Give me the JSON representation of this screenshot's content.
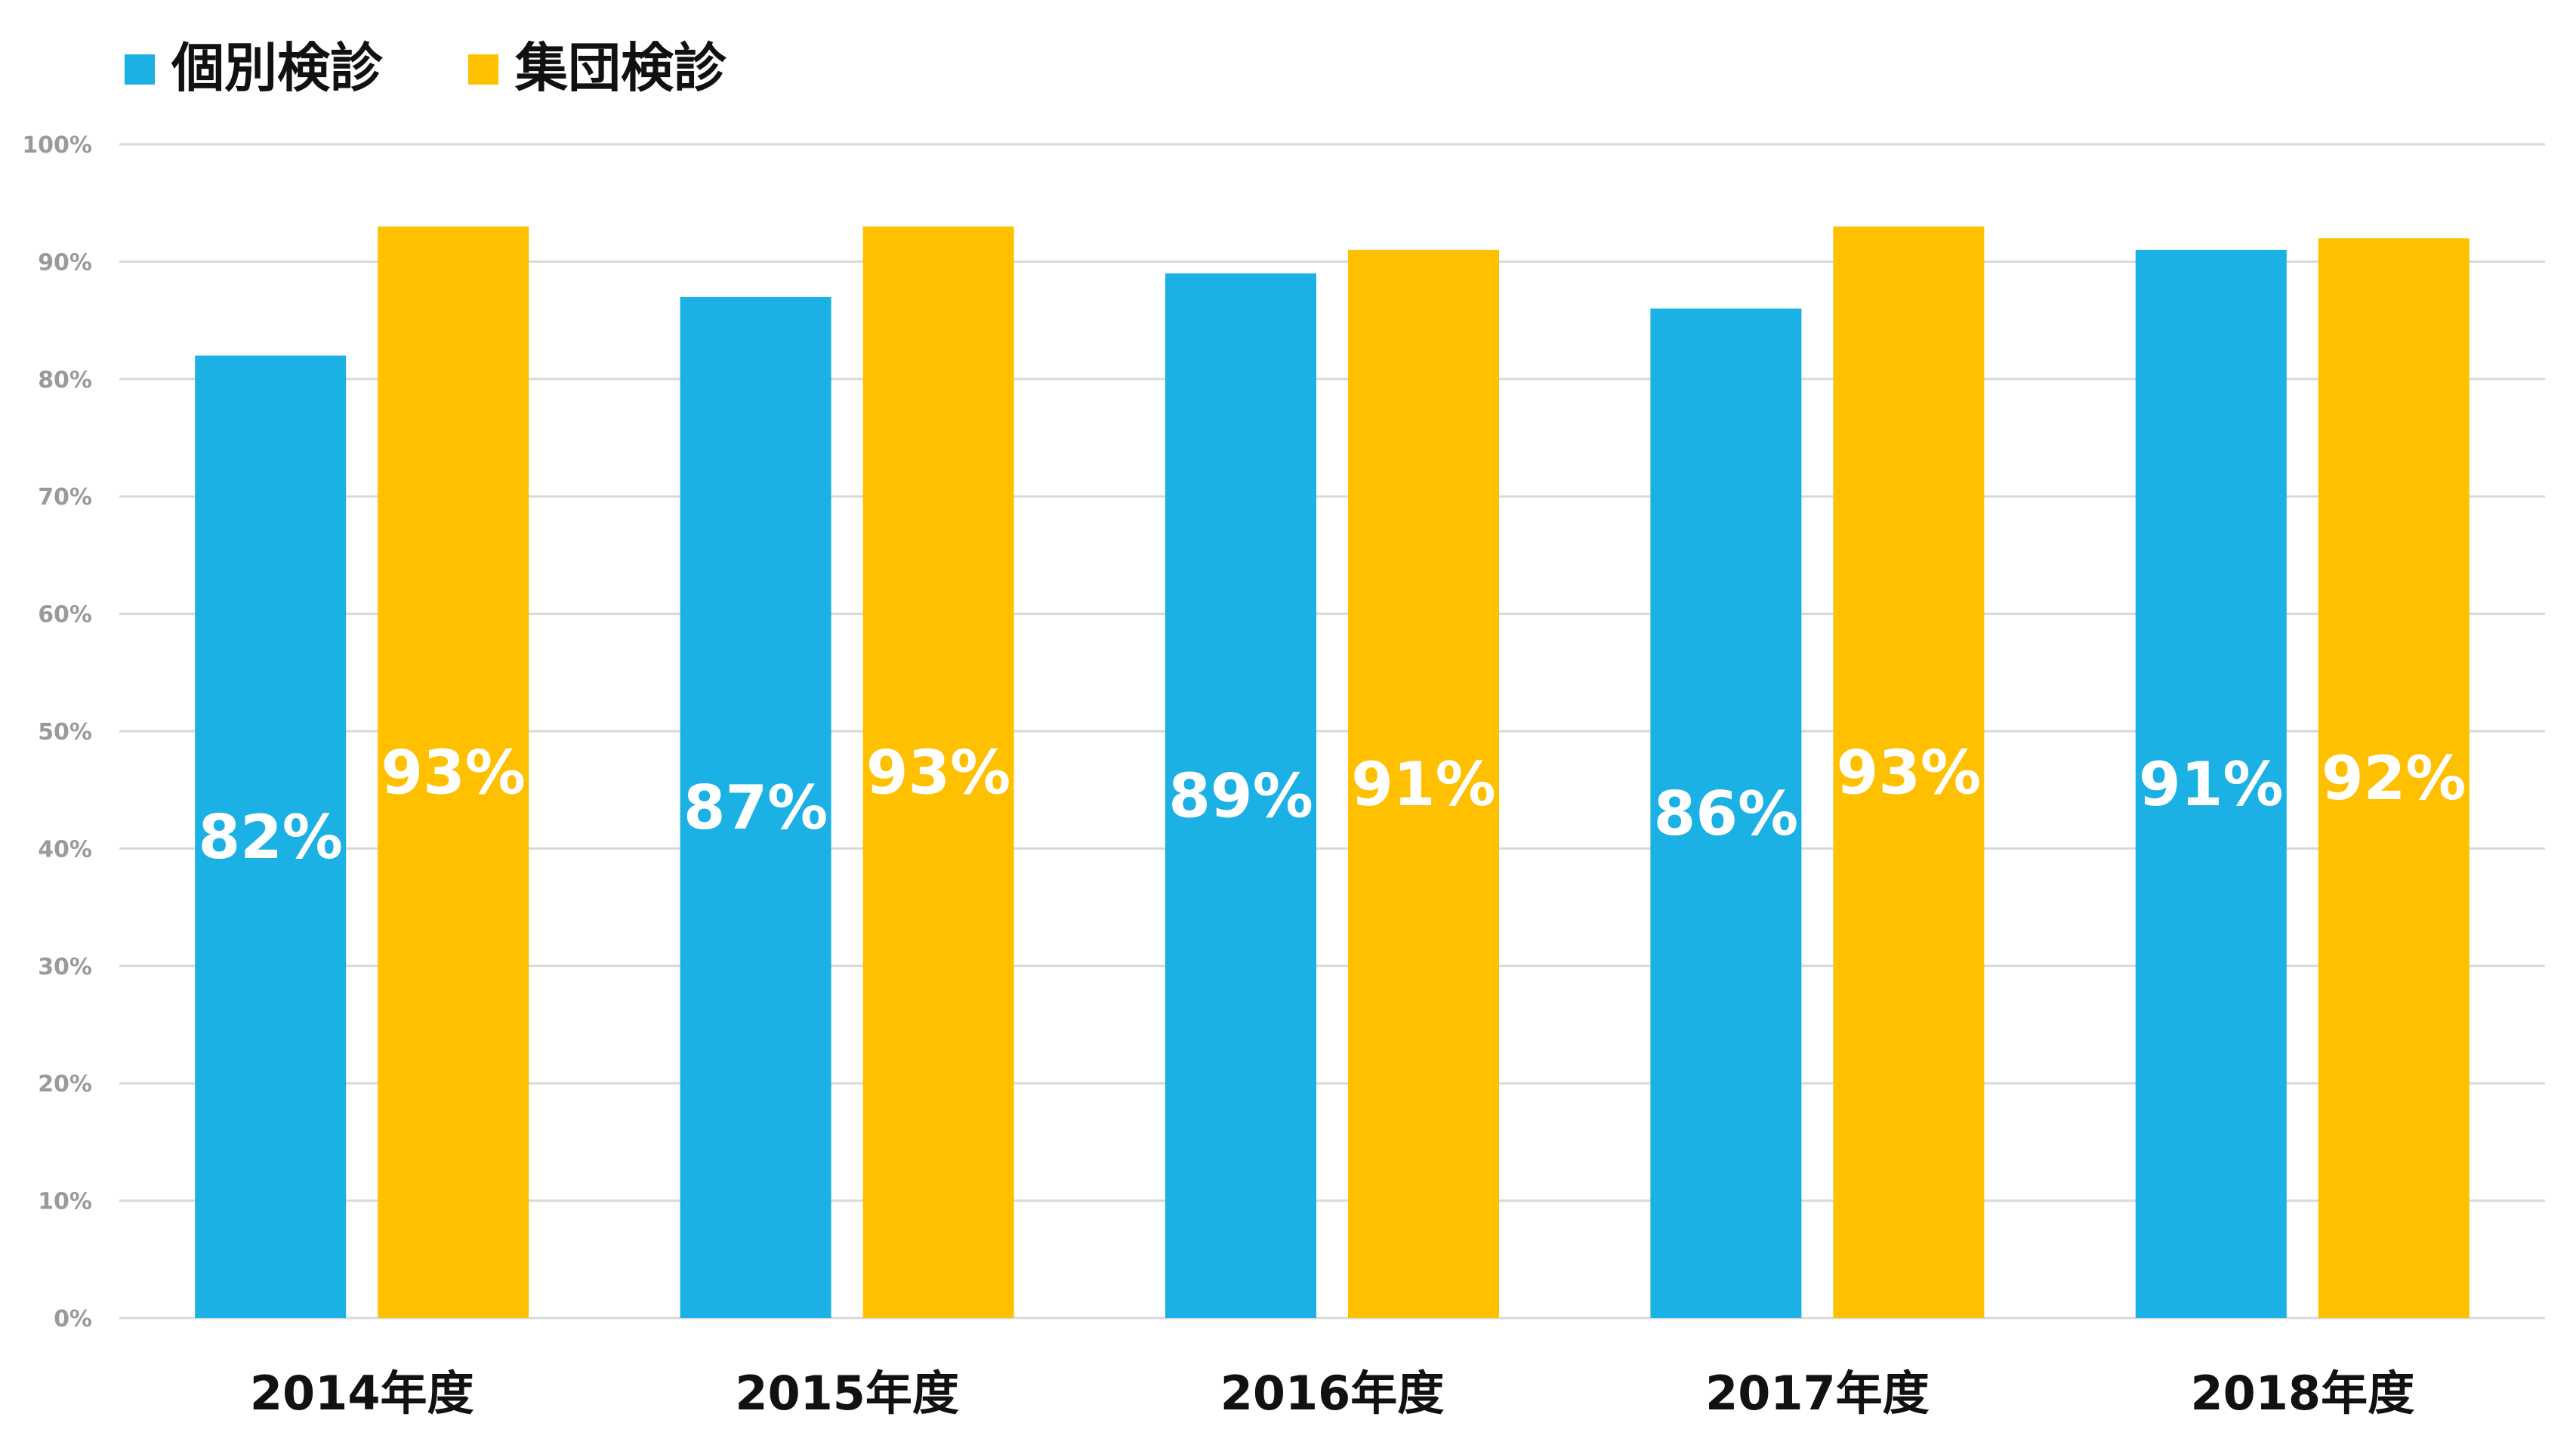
{
  "chart_data": {
    "type": "bar",
    "title": "",
    "xlabel": "",
    "ylabel": "",
    "categories": [
      "2014年度",
      "2015年度",
      "2016年度",
      "2017年度",
      "2018年度"
    ],
    "series": [
      {
        "name": "個別検診",
        "color": "#1BB1E4",
        "values": [
          82,
          87,
          89,
          86,
          91
        ],
        "labels": [
          "82%",
          "87%",
          "89%",
          "86%",
          "91%"
        ]
      },
      {
        "name": "集団検診",
        "color": "#FFC000",
        "values": [
          93,
          93,
          91,
          93,
          92
        ],
        "labels": [
          "93%",
          "93%",
          "91%",
          "93%",
          "92%"
        ]
      }
    ],
    "ylim": [
      0,
      100
    ],
    "yticks": [
      0,
      10,
      20,
      30,
      40,
      50,
      60,
      70,
      80,
      90,
      100
    ],
    "ytick_labels": [
      "0%",
      "10%",
      "20%",
      "30%",
      "40%",
      "50%",
      "60%",
      "70%",
      "80%",
      "90%",
      "100%"
    ],
    "grid": true,
    "legend_position": "top-left"
  }
}
